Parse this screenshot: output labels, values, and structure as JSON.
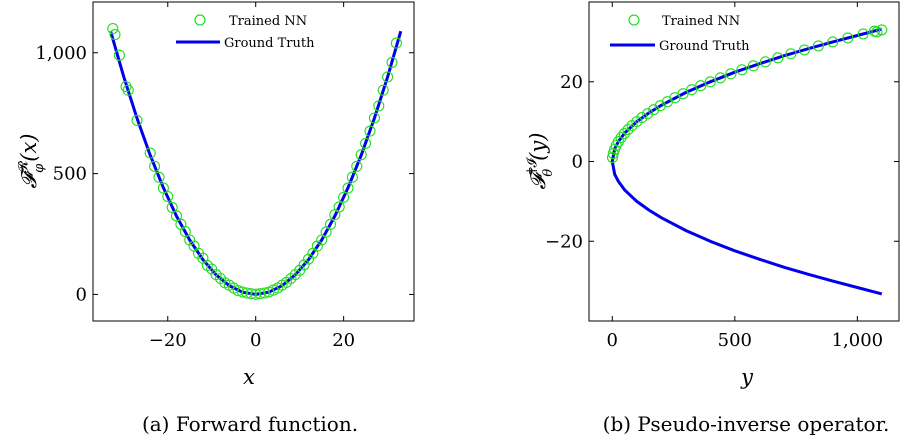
{
  "chart_data": [
    {
      "type": "scatter+line",
      "caption": "(a) Forward function.",
      "xlabel": "x",
      "ylabel": "𝓕",
      "ylabel_sup": "𝓡",
      "ylabel_sub": "φ",
      "ylabel_arg": "(x)",
      "xlim": [
        -37,
        36
      ],
      "ylim": [
        -110,
        1210
      ],
      "xticks": [
        -20,
        0,
        20
      ],
      "xtick_labels": [
        "−20",
        "0",
        "20"
      ],
      "yticks": [
        0,
        500,
        1000
      ],
      "ytick_labels": [
        "0",
        "500",
        "1,000"
      ],
      "legend": [
        "Trained NN",
        "Ground Truth"
      ],
      "legend_position": "top-center",
      "colors": {
        "scatter": "#22dd22",
        "line": "#0000ee"
      },
      "series": [
        {
          "name": "Ground Truth",
          "kind": "line",
          "x": [
            -33,
            -30,
            -27,
            -24,
            -21,
            -18,
            -15,
            -12,
            -9,
            -6,
            -3,
            0,
            3,
            6,
            9,
            12,
            15,
            18,
            21,
            24,
            27,
            30,
            33
          ],
          "y": [
            1089,
            900,
            729,
            576,
            441,
            324,
            225,
            144,
            81,
            36,
            9,
            0,
            9,
            36,
            81,
            144,
            225,
            324,
            441,
            576,
            729,
            900,
            1089
          ]
        },
        {
          "name": "Trained NN",
          "kind": "scatter",
          "x": [
            -32.5,
            -32,
            -31,
            -29.5,
            -29,
            -27,
            -24,
            -23,
            -22,
            -21,
            -20,
            -19,
            -18,
            -17,
            -16,
            -15,
            -14,
            -13,
            -12,
            -11,
            -10,
            -9,
            -8,
            -7,
            -6,
            -5,
            -4,
            -3,
            -2,
            -1,
            0,
            1,
            2,
            3,
            4,
            5,
            6,
            7,
            8,
            9,
            10,
            11,
            12,
            13,
            14,
            15,
            16,
            17,
            18,
            19,
            20,
            21,
            22,
            23,
            24,
            25,
            26,
            27,
            28,
            29,
            30,
            31,
            32
          ],
          "y": [
            1100,
            1075,
            990,
            860,
            845,
            720,
            585,
            530,
            485,
            440,
            405,
            360,
            325,
            290,
            260,
            225,
            200,
            170,
            150,
            120,
            105,
            82,
            66,
            48,
            38,
            26,
            16,
            10,
            6,
            3,
            1,
            3,
            6,
            10,
            18,
            26,
            38,
            50,
            66,
            82,
            100,
            122,
            146,
            170,
            200,
            225,
            258,
            290,
            330,
            362,
            402,
            440,
            485,
            530,
            578,
            625,
            676,
            730,
            780,
            845,
            900,
            960,
            1040
          ]
        }
      ]
    },
    {
      "type": "scatter+line",
      "caption": "(b) Pseudo-inverse operator.",
      "xlabel": "y",
      "ylabel": "𝓕",
      "ylabel_sup": "†𝓘",
      "ylabel_sub": "θ",
      "ylabel_arg": "(y)",
      "xlim": [
        -95,
        1170
      ],
      "ylim": [
        -40,
        40
      ],
      "xticks": [
        0,
        500,
        1000
      ],
      "xtick_labels": [
        "0",
        "500",
        "1,000"
      ],
      "yticks": [
        -20,
        0,
        20
      ],
      "ytick_labels": [
        "−20",
        "0",
        "20"
      ],
      "legend": [
        "Trained NN",
        "Ground Truth"
      ],
      "legend_position": "top-left",
      "colors": {
        "scatter": "#22dd22",
        "line": "#0000ee"
      },
      "series": [
        {
          "name": "Ground Truth",
          "kind": "line",
          "x": [
            1100,
            1000,
            900,
            800,
            700,
            600,
            500,
            400,
            300,
            200,
            150,
            100,
            50,
            25,
            10,
            0,
            10,
            25,
            50,
            100,
            150,
            200,
            300,
            400,
            500,
            600,
            700,
            800,
            900,
            1000,
            1100
          ],
          "y": [
            33.2,
            31.6,
            30,
            28.3,
            26.5,
            24.5,
            22.4,
            20,
            17.3,
            14.1,
            12.2,
            10,
            7.1,
            5,
            3.2,
            0,
            -3.2,
            -5,
            -7.1,
            -10,
            -12.2,
            -14.1,
            -17.3,
            -20,
            -22.4,
            -24.5,
            -26.5,
            -28.3,
            -30,
            -31.6,
            -33.2
          ]
        },
        {
          "name": "Trained NN",
          "kind": "scatter",
          "x": [
            1,
            4,
            9,
            16,
            25,
            36,
            49,
            64,
            81,
            100,
            121,
            144,
            169,
            196,
            225,
            256,
            289,
            324,
            361,
            400,
            441,
            484,
            529,
            576,
            625,
            676,
            729,
            784,
            841,
            900,
            961,
            1024,
            1080,
            1100,
            1070
          ],
          "y": [
            1,
            2,
            3,
            4,
            5,
            6,
            7,
            8,
            9,
            10,
            11,
            12,
            13,
            14,
            15,
            16,
            17,
            18,
            19,
            20,
            21,
            22,
            23,
            24,
            25,
            26,
            27,
            28,
            29,
            30,
            31,
            32,
            32.5,
            33,
            32.7
          ]
        }
      ]
    }
  ]
}
